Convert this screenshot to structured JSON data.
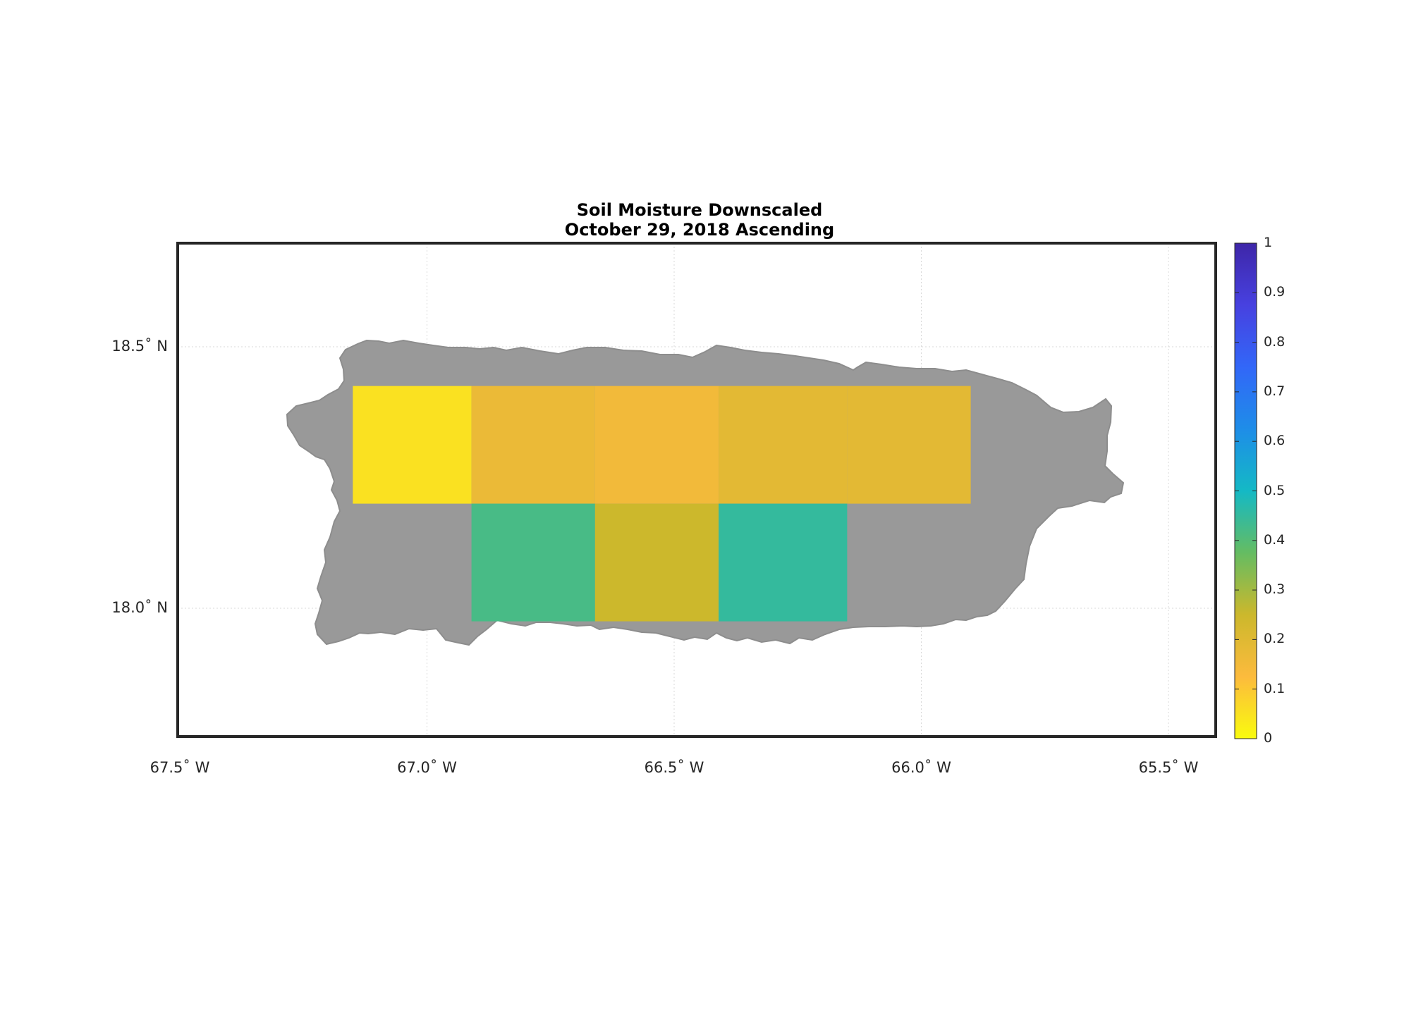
{
  "title": "Soil Moisture Downscaled",
  "subtitle": "October 29, 2018 Ascending",
  "map": {
    "region": "Puerto Rico",
    "lon_range": [
      -67.5,
      -65.4
    ],
    "lat_range": [
      17.75,
      18.7
    ],
    "land_color": "#999999",
    "grid": true
  },
  "axes": {
    "x_ticks": [
      {
        "value": -67.5,
        "label": "67.5˚ W"
      },
      {
        "value": -67.0,
        "label": "67.0˚ W"
      },
      {
        "value": -66.5,
        "label": "66.5˚ W"
      },
      {
        "value": -66.0,
        "label": "66.0˚ W"
      },
      {
        "value": -65.5,
        "label": "65.5˚ W"
      }
    ],
    "y_ticks": [
      {
        "value": 18.5,
        "label": "18.5˚ N"
      },
      {
        "value": 18.0,
        "label": "18.0˚ N"
      }
    ]
  },
  "colorbar": {
    "min": 0,
    "max": 1,
    "colormap": "parula (reversed)",
    "ticks": [
      "0",
      "0.1",
      "0.2",
      "0.3",
      "0.4",
      "0.5",
      "0.6",
      "0.7",
      "0.8",
      "0.9",
      "1"
    ],
    "colors": [
      "#f9fb0e",
      "#fcbb3d",
      "#ccb82c",
      "#65bc62",
      "#14b9c5",
      "#1e8de8",
      "#3267f8",
      "#4741e0",
      "#3e26a8"
    ]
  },
  "data_tiles": [
    {
      "lon": [
        -67.15,
        -66.91
      ],
      "lat": [
        18.2,
        18.425
      ],
      "moisture": 0.05
    },
    {
      "lon": [
        -66.91,
        -66.66
      ],
      "lat": [
        18.2,
        18.425
      ],
      "moisture": 0.17
    },
    {
      "lon": [
        -66.66,
        -66.41
      ],
      "lat": [
        18.2,
        18.425
      ],
      "moisture": 0.15
    },
    {
      "lon": [
        -66.41,
        -66.15
      ],
      "lat": [
        18.2,
        18.425
      ],
      "moisture": 0.19
    },
    {
      "lon": [
        -66.15,
        -65.9
      ],
      "lat": [
        18.2,
        18.425
      ],
      "moisture": 0.19
    },
    {
      "lon": [
        -66.91,
        -66.66
      ],
      "lat": [
        17.975,
        18.2
      ],
      "moisture": 0.42
    },
    {
      "lon": [
        -66.66,
        -66.41
      ],
      "lat": [
        17.975,
        18.2
      ],
      "moisture": 0.25
    },
    {
      "lon": [
        -66.41,
        -66.15
      ],
      "lat": [
        17.975,
        18.2
      ],
      "moisture": 0.45
    }
  ]
}
